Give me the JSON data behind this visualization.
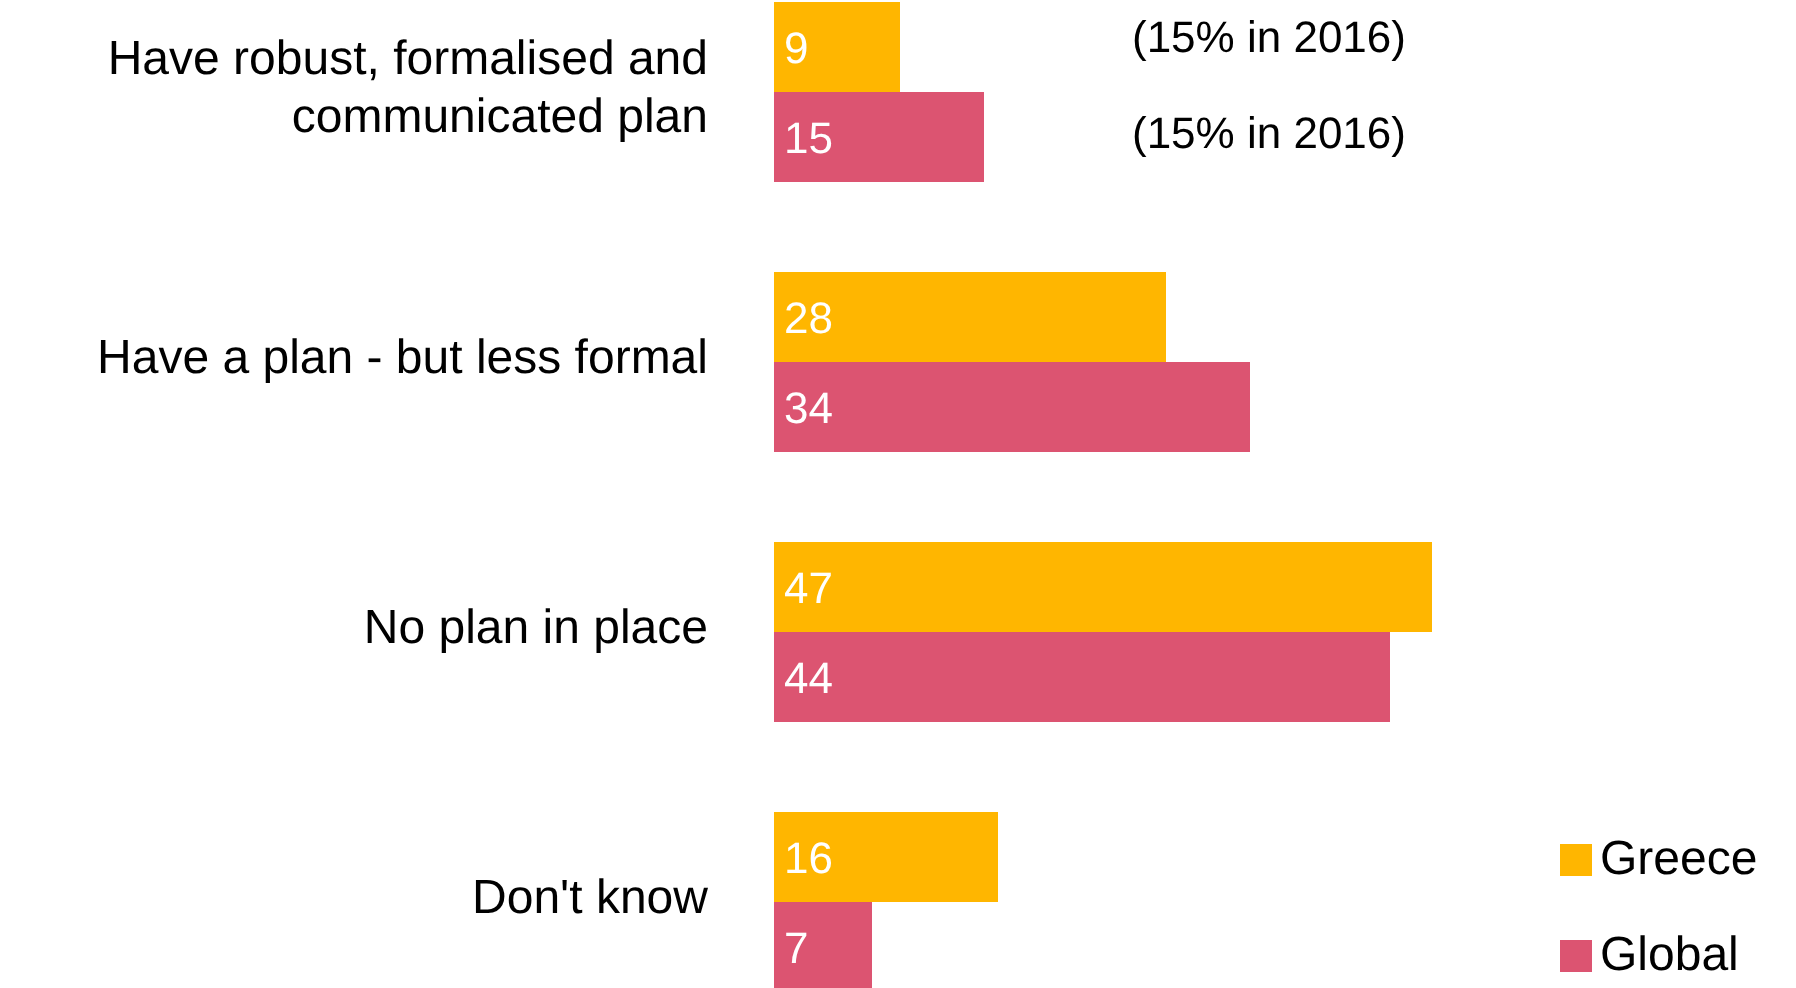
{
  "chart_data": {
    "type": "bar",
    "orientation": "horizontal",
    "categories": [
      "Have robust, formalised and communicated plan",
      "Have a plan - but less formal",
      "No plan in place",
      "Don't know"
    ],
    "series": [
      {
        "name": "Greece",
        "color": "#ffb600",
        "values": [
          9,
          28,
          47,
          16
        ]
      },
      {
        "name": "Global",
        "color": "#dc5471",
        "values": [
          15,
          34,
          44,
          7
        ]
      }
    ],
    "data_labels": true,
    "legend": "bottom right",
    "annotations": [
      "(15% in 2016)",
      "(15% in 2016)"
    ]
  }
}
